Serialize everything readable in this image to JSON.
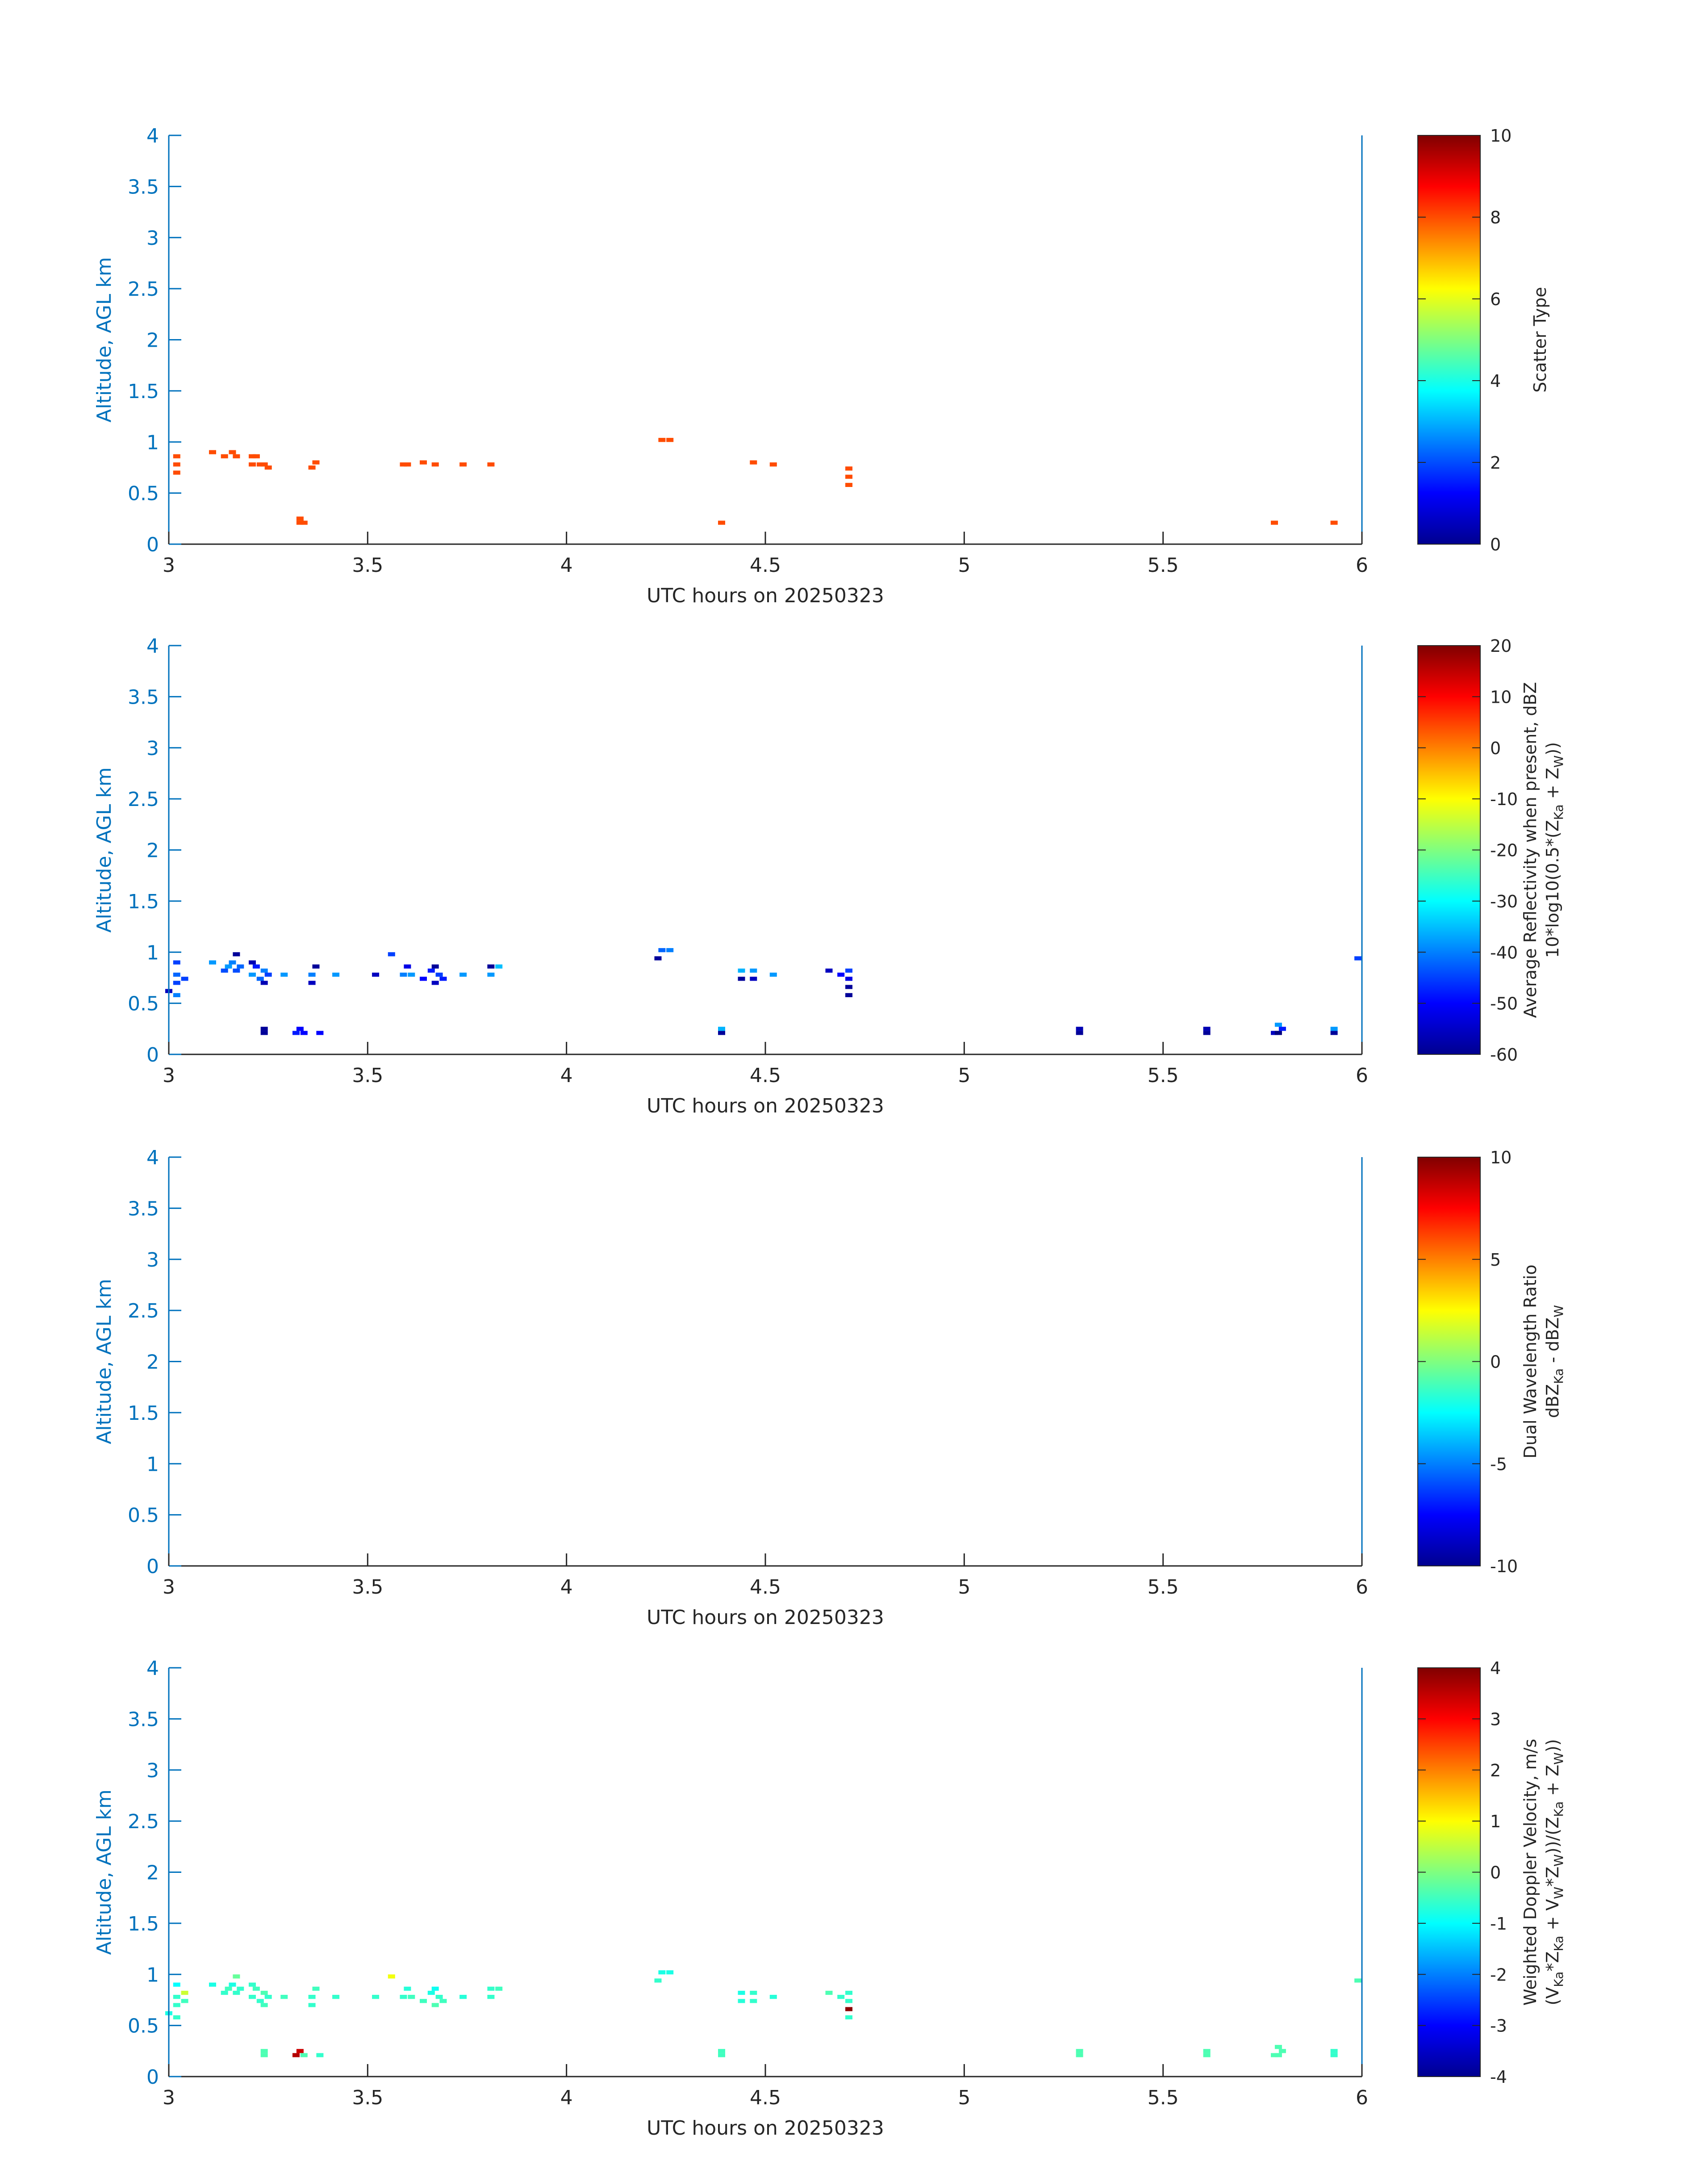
{
  "chart_data": [
    {
      "type": "heatmap",
      "xlabel": "UTC hours on 20250323",
      "ylabel": "Altitude, AGL km",
      "xlim": [
        3,
        6
      ],
      "ylim": [
        0,
        4
      ],
      "xticks": [
        "3",
        "3.5",
        "4",
        "4.5",
        "5",
        "5.5",
        "6"
      ],
      "yticks": [
        "0",
        "0.5",
        "1",
        "1.5",
        "2",
        "2.5",
        "3",
        "3.5",
        "4"
      ],
      "colorbar": {
        "label": [
          "Scatter Type"
        ],
        "range": [
          0,
          10
        ],
        "ticks": [
          "0",
          "2",
          "4",
          "6",
          "8",
          "10"
        ]
      },
      "cells": [
        [
          3.02,
          0.7,
          8
        ],
        [
          3.02,
          0.78,
          8
        ],
        [
          3.02,
          0.86,
          8
        ],
        [
          3.11,
          0.9,
          8
        ],
        [
          3.14,
          0.86,
          8
        ],
        [
          3.16,
          0.9,
          8
        ],
        [
          3.17,
          0.86,
          8
        ],
        [
          3.21,
          0.78,
          8
        ],
        [
          3.21,
          0.86,
          8
        ],
        [
          3.22,
          0.86,
          8
        ],
        [
          3.23,
          0.78,
          8
        ],
        [
          3.24,
          0.78,
          8
        ],
        [
          3.25,
          0.75,
          8
        ],
        [
          3.33,
          0.25,
          8
        ],
        [
          3.33,
          0.21,
          8
        ],
        [
          3.34,
          0.21,
          8
        ],
        [
          3.36,
          0.75,
          8
        ],
        [
          3.37,
          0.8,
          8
        ],
        [
          3.59,
          0.78,
          8
        ],
        [
          3.6,
          0.78,
          8
        ],
        [
          3.64,
          0.8,
          8
        ],
        [
          3.67,
          0.78,
          8
        ],
        [
          3.74,
          0.78,
          8
        ],
        [
          3.81,
          0.78,
          8
        ],
        [
          4.24,
          1.02,
          8
        ],
        [
          4.26,
          1.02,
          8
        ],
        [
          4.39,
          0.21,
          8
        ],
        [
          4.47,
          0.8,
          8
        ],
        [
          4.52,
          0.78,
          8
        ],
        [
          4.71,
          0.58,
          8
        ],
        [
          4.71,
          0.66,
          8
        ],
        [
          4.71,
          0.74,
          8
        ],
        [
          5.78,
          0.21,
          8
        ],
        [
          5.93,
          0.21,
          8
        ]
      ]
    },
    {
      "type": "heatmap",
      "xlabel": "UTC hours on 20250323",
      "ylabel": "Altitude, AGL km",
      "xlim": [
        3,
        6
      ],
      "ylim": [
        0,
        4
      ],
      "xticks": [
        "3",
        "3.5",
        "4",
        "4.5",
        "5",
        "5.5",
        "6"
      ],
      "yticks": [
        "0",
        "0.5",
        "1",
        "1.5",
        "2",
        "2.5",
        "3",
        "3.5",
        "4"
      ],
      "colorbar": {
        "label": [
          "Average Reflectivity when present, dBZ",
          "10*log10(0.5*(Z",
          "Ka",
          " + Z",
          "W",
          "))"
        ],
        "range": [
          -60,
          20
        ],
        "ticks": [
          "-60",
          "-50",
          "-40",
          "-30",
          "-20",
          "-10",
          "0",
          "10",
          "20"
        ]
      },
      "cells": [
        [
          3.0,
          0.62,
          -55
        ],
        [
          3.02,
          0.58,
          -40
        ],
        [
          3.02,
          0.7,
          -45
        ],
        [
          3.02,
          0.78,
          -42
        ],
        [
          3.02,
          0.9,
          -45
        ],
        [
          3.04,
          0.74,
          -45
        ],
        [
          3.11,
          0.9,
          -38
        ],
        [
          3.14,
          0.82,
          -44
        ],
        [
          3.15,
          0.86,
          -38
        ],
        [
          3.16,
          0.9,
          -40
        ],
        [
          3.17,
          0.98,
          -58
        ],
        [
          3.17,
          0.82,
          -44
        ],
        [
          3.18,
          0.86,
          -42
        ],
        [
          3.21,
          0.9,
          -56
        ],
        [
          3.21,
          0.78,
          -38
        ],
        [
          3.22,
          0.86,
          -48
        ],
        [
          3.23,
          0.74,
          -42
        ],
        [
          3.24,
          0.7,
          -56
        ],
        [
          3.24,
          0.82,
          -40
        ],
        [
          3.25,
          0.78,
          -45
        ],
        [
          3.24,
          0.21,
          -58
        ],
        [
          3.24,
          0.25,
          -58
        ],
        [
          3.29,
          0.78,
          -38
        ],
        [
          3.32,
          0.21,
          -48
        ],
        [
          3.33,
          0.25,
          -50
        ],
        [
          3.34,
          0.21,
          -50
        ],
        [
          3.36,
          0.7,
          -55
        ],
        [
          3.36,
          0.78,
          -40
        ],
        [
          3.37,
          0.86,
          -58
        ],
        [
          3.38,
          0.21,
          -50
        ],
        [
          3.42,
          0.78,
          -38
        ],
        [
          3.52,
          0.78,
          -55
        ],
        [
          3.56,
          0.98,
          -45
        ],
        [
          3.59,
          0.78,
          -40
        ],
        [
          3.6,
          0.86,
          -52
        ],
        [
          3.61,
          0.78,
          -38
        ],
        [
          3.64,
          0.74,
          -50
        ],
        [
          3.66,
          0.82,
          -48
        ],
        [
          3.67,
          0.86,
          -58
        ],
        [
          3.67,
          0.7,
          -55
        ],
        [
          3.68,
          0.78,
          -45
        ],
        [
          3.69,
          0.74,
          -48
        ],
        [
          3.74,
          0.78,
          -38
        ],
        [
          3.81,
          0.86,
          -58
        ],
        [
          3.81,
          0.78,
          -38
        ],
        [
          3.83,
          0.86,
          -35
        ],
        [
          4.23,
          0.94,
          -58
        ],
        [
          4.24,
          1.02,
          -42
        ],
        [
          4.26,
          1.02,
          -40
        ],
        [
          4.39,
          0.21,
          -58
        ],
        [
          4.39,
          0.25,
          -36
        ],
        [
          4.44,
          0.74,
          -58
        ],
        [
          4.44,
          0.82,
          -36
        ],
        [
          4.47,
          0.74,
          -55
        ],
        [
          4.47,
          0.82,
          -38
        ],
        [
          4.52,
          0.78,
          -38
        ],
        [
          4.66,
          0.82,
          -55
        ],
        [
          4.69,
          0.78,
          -50
        ],
        [
          4.71,
          0.82,
          -45
        ],
        [
          4.71,
          0.58,
          -58
        ],
        [
          4.71,
          0.66,
          -58
        ],
        [
          4.71,
          0.74,
          -52
        ],
        [
          5.29,
          0.21,
          -58
        ],
        [
          5.29,
          0.25,
          -56
        ],
        [
          5.61,
          0.21,
          -58
        ],
        [
          5.61,
          0.25,
          -56
        ],
        [
          5.78,
          0.21,
          -55
        ],
        [
          5.79,
          0.21,
          -60
        ],
        [
          5.79,
          0.29,
          -38
        ],
        [
          5.8,
          0.25,
          -48
        ],
        [
          5.93,
          0.21,
          -58
        ],
        [
          5.93,
          0.25,
          -38
        ],
        [
          5.99,
          0.94,
          -45
        ]
      ]
    },
    {
      "type": "heatmap",
      "xlabel": "UTC hours on 20250323",
      "ylabel": "Altitude, AGL km",
      "xlim": [
        3,
        6
      ],
      "ylim": [
        0,
        4
      ],
      "xticks": [
        "3",
        "3.5",
        "4",
        "4.5",
        "5",
        "5.5",
        "6"
      ],
      "yticks": [
        "0",
        "0.5",
        "1",
        "1.5",
        "2",
        "2.5",
        "3",
        "3.5",
        "4"
      ],
      "colorbar": {
        "label": [
          "Dual Wavelength Ratio",
          "dBZ",
          "Ka",
          " - dBZ",
          "W",
          ""
        ],
        "range": [
          -10,
          10
        ],
        "ticks": [
          "-10",
          "-5",
          "0",
          "5",
          "10"
        ]
      },
      "cells": []
    },
    {
      "type": "heatmap",
      "xlabel": "UTC hours on 20250323",
      "ylabel": "Altitude, AGL km",
      "xlim": [
        3,
        6
      ],
      "ylim": [
        0,
        4
      ],
      "xticks": [
        "3",
        "3.5",
        "4",
        "4.5",
        "5",
        "5.5",
        "6"
      ],
      "yticks": [
        "0",
        "0.5",
        "1",
        "1.5",
        "2",
        "2.5",
        "3",
        "3.5",
        "4"
      ],
      "colorbar": {
        "label": [
          "Weighted Doppler Velocity, m/s",
          "(V",
          "Ka",
          "*Z",
          "Ka",
          " + V",
          "W",
          "*Z",
          "W",
          "))/(Z",
          "Ka",
          " + Z",
          "W",
          "))"
        ],
        "range": [
          -4,
          4
        ],
        "ticks": [
          "-4",
          "-3",
          "-2",
          "-1",
          "0",
          "1",
          "2",
          "3",
          "4"
        ]
      },
      "cells": [
        [
          3.0,
          0.62,
          -0.8
        ],
        [
          3.02,
          0.58,
          -0.6
        ],
        [
          3.02,
          0.7,
          -0.6
        ],
        [
          3.02,
          0.78,
          -0.6
        ],
        [
          3.02,
          0.9,
          -1.0
        ],
        [
          3.04,
          0.74,
          -0.5
        ],
        [
          3.04,
          0.82,
          0.6
        ],
        [
          3.11,
          0.9,
          -0.8
        ],
        [
          3.14,
          0.82,
          -0.6
        ],
        [
          3.15,
          0.86,
          -0.5
        ],
        [
          3.16,
          0.9,
          -0.8
        ],
        [
          3.17,
          0.98,
          -0.2
        ],
        [
          3.17,
          0.82,
          -0.6
        ],
        [
          3.18,
          0.86,
          -0.6
        ],
        [
          3.21,
          0.9,
          -0.6
        ],
        [
          3.21,
          0.78,
          -0.6
        ],
        [
          3.22,
          0.86,
          -0.5
        ],
        [
          3.23,
          0.74,
          -0.6
        ],
        [
          3.24,
          0.7,
          -0.5
        ],
        [
          3.24,
          0.82,
          -0.4
        ],
        [
          3.25,
          0.78,
          -0.6
        ],
        [
          3.24,
          0.21,
          -0.4
        ],
        [
          3.24,
          0.25,
          -0.4
        ],
        [
          3.29,
          0.78,
          -0.5
        ],
        [
          3.32,
          0.21,
          3.6
        ],
        [
          3.33,
          0.25,
          3.4
        ],
        [
          3.34,
          0.21,
          -0.4
        ],
        [
          3.36,
          0.7,
          -0.6
        ],
        [
          3.36,
          0.78,
          -0.6
        ],
        [
          3.37,
          0.86,
          -0.5
        ],
        [
          3.38,
          0.21,
          -0.6
        ],
        [
          3.42,
          0.78,
          -0.6
        ],
        [
          3.52,
          0.78,
          -0.6
        ],
        [
          3.56,
          0.98,
          0.9
        ],
        [
          3.59,
          0.78,
          -0.6
        ],
        [
          3.6,
          0.86,
          -0.7
        ],
        [
          3.61,
          0.78,
          -0.5
        ],
        [
          3.64,
          0.74,
          -0.5
        ],
        [
          3.66,
          0.82,
          -0.8
        ],
        [
          3.67,
          0.86,
          -0.9
        ],
        [
          3.67,
          0.7,
          -0.4
        ],
        [
          3.68,
          0.78,
          -0.6
        ],
        [
          3.69,
          0.74,
          -0.5
        ],
        [
          3.74,
          0.78,
          -0.7
        ],
        [
          3.81,
          0.86,
          -0.6
        ],
        [
          3.81,
          0.78,
          -0.6
        ],
        [
          3.83,
          0.86,
          -0.5
        ],
        [
          4.23,
          0.94,
          -0.6
        ],
        [
          4.24,
          1.02,
          -0.8
        ],
        [
          4.26,
          1.02,
          -0.8
        ],
        [
          4.39,
          0.21,
          -0.5
        ],
        [
          4.39,
          0.25,
          -0.5
        ],
        [
          4.44,
          0.74,
          -0.7
        ],
        [
          4.44,
          0.82,
          -0.8
        ],
        [
          4.47,
          0.74,
          -0.6
        ],
        [
          4.47,
          0.82,
          -0.6
        ],
        [
          4.52,
          0.78,
          -0.7
        ],
        [
          4.66,
          0.82,
          -0.4
        ],
        [
          4.69,
          0.78,
          -0.6
        ],
        [
          4.71,
          0.82,
          -0.6
        ],
        [
          4.71,
          0.58,
          -0.6
        ],
        [
          4.71,
          0.66,
          3.9
        ],
        [
          4.71,
          0.74,
          -0.6
        ],
        [
          5.29,
          0.21,
          -0.4
        ],
        [
          5.29,
          0.25,
          -0.4
        ],
        [
          5.61,
          0.21,
          -0.4
        ],
        [
          5.61,
          0.25,
          -0.4
        ],
        [
          5.78,
          0.21,
          -0.4
        ],
        [
          5.79,
          0.21,
          -0.4
        ],
        [
          5.79,
          0.29,
          -0.4
        ],
        [
          5.8,
          0.25,
          -0.4
        ],
        [
          5.93,
          0.21,
          -0.6
        ],
        [
          5.93,
          0.25,
          -0.6
        ],
        [
          5.99,
          0.94,
          -0.4
        ]
      ]
    }
  ]
}
